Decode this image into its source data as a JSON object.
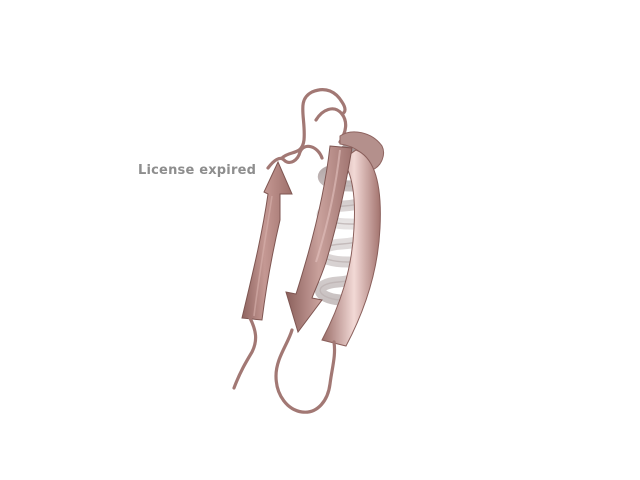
{
  "viewer": {
    "watermark_text": "License expired",
    "watermark_color": "#8e8e8e",
    "background_color": "#ffffff"
  },
  "structure": {
    "representation": "cartoon",
    "secondary_structure": [
      "beta-strand",
      "beta-strand",
      "beta-strand",
      "alpha-helix"
    ],
    "ribbon_color": "#b88a86",
    "ribbon_shadow_color": "#8f6460",
    "ribbon_highlight_color": "#efd2cf",
    "helix_color": "#d8d4d4"
  }
}
